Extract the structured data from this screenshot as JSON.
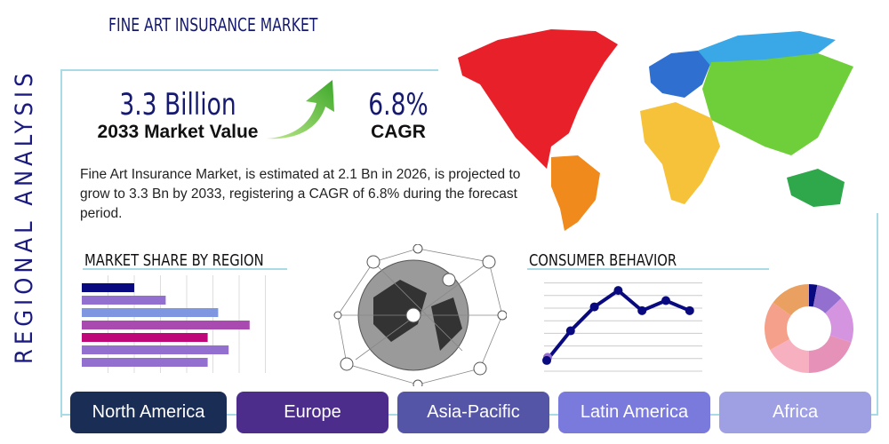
{
  "title": "FINE ART INSURANCE MARKET",
  "side_label": "REGIONAL ANALYSIS",
  "market_value": {
    "value": "3.3 Billion",
    "label": "2033 Market Value"
  },
  "cagr": {
    "value": "6.8%",
    "label": "CAGR"
  },
  "description": "Fine Art Insurance Market, is estimated at 2.1 Bn in 2026, is projected to grow to 3.3 Bn by 2033, registering a CAGR of 6.8% during the forecast period.",
  "sections": {
    "share": "MARKET SHARE BY REGION",
    "consumer": "CONSUMER BEHAVIOR"
  },
  "regions": [
    {
      "label": "North America",
      "color": "#1a2d55"
    },
    {
      "label": "Europe",
      "color": "#4d2d8c"
    },
    {
      "label": "Asia-Pacific",
      "color": "#5555a8"
    },
    {
      "label": "Latin America",
      "color": "#7a7adc"
    },
    {
      "label": "Africa",
      "color": "#9f9fe3"
    }
  ],
  "map_colors": {
    "north_america": "#e8202a",
    "south_america": "#f08a1c",
    "europe": "#2f6fd0",
    "asia": "#6fcf3a",
    "russia": "#3aa8e6",
    "africa": "#f5c23a",
    "oceania": "#2ea84a"
  },
  "chart_data": [
    {
      "type": "bar",
      "orientation": "horizontal",
      "values": [
        2.0,
        3.2,
        5.2,
        6.4,
        4.8,
        5.6,
        4.8
      ],
      "colors": [
        "#0a0a80",
        "#9370cf",
        "#7f96e0",
        "#a94ab0",
        "#c0077a",
        "#9370cf",
        "#9370cf"
      ],
      "xlim": [
        0,
        7
      ],
      "grid": true
    },
    {
      "type": "line",
      "values": [
        0.85,
        3.2,
        5.1,
        6.4,
        4.8,
        5.6,
        4.8
      ],
      "extra_point": 1.1,
      "ylim": [
        0,
        7
      ],
      "grid": true,
      "color": "#0a0a80"
    },
    {
      "type": "pie",
      "donut": true,
      "values": [
        3,
        10,
        17,
        20,
        17,
        18,
        15
      ],
      "colors": [
        "#0a0a80",
        "#9370cf",
        "#d494e0",
        "#e591b8",
        "#f7b0c0",
        "#f5a08a",
        "#e9a060"
      ]
    }
  ]
}
